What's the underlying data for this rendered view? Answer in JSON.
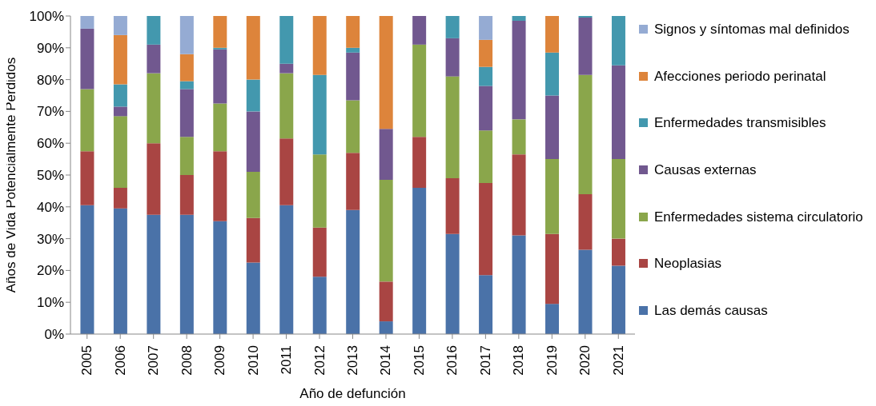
{
  "chart_data": {
    "type": "bar",
    "stacked": true,
    "xlabel": "Año de defunción",
    "ylabel": "Años de Vida Potencialmente Perdidos",
    "categories": [
      "2005",
      "2006",
      "2007",
      "2008",
      "2009",
      "2010",
      "2011",
      "2012",
      "2013",
      "2014",
      "2015",
      "2016",
      "2017",
      "2018",
      "2019",
      "2020",
      "2021"
    ],
    "series": [
      {
        "name": "Las demás causas",
        "color": "#4a72a8",
        "values": [
          40.5,
          39.5,
          37.5,
          37.5,
          35.5,
          22.5,
          40.5,
          18,
          39,
          4,
          46,
          31.5,
          18.5,
          31,
          9.5,
          26.5,
          21.5
        ]
      },
      {
        "name": "Neoplasias",
        "color": "#a94543",
        "values": [
          17,
          6.5,
          22.5,
          12.5,
          22,
          14,
          21,
          15.5,
          18,
          12.5,
          16,
          17.5,
          29,
          25.5,
          22,
          17.5,
          8.5
        ]
      },
      {
        "name": "Enfermedades sistema circulatorio",
        "color": "#8aa64b",
        "values": [
          19.5,
          22.5,
          22,
          12,
          15,
          14.5,
          20.5,
          23,
          16.5,
          32,
          29,
          32,
          16.5,
          11,
          23.5,
          37.5,
          25
        ]
      },
      {
        "name": "Causas externas",
        "color": "#71588f",
        "values": [
          19,
          3,
          9,
          15,
          17,
          19,
          3,
          0,
          15,
          16,
          9,
          12,
          14,
          31,
          20,
          18,
          29.5
        ]
      },
      {
        "name": "Enfermedades transmisibles",
        "color": "#4398ae",
        "values": [
          0,
          7,
          9,
          2.5,
          0.5,
          10,
          15,
          25,
          1.5,
          0,
          0,
          7,
          6,
          1.5,
          13.5,
          0.5,
          15.5
        ]
      },
      {
        "name": "Afecciones periodo perinatal",
        "color": "#dd843b",
        "values": [
          0,
          15.5,
          0,
          8.5,
          10,
          20,
          0,
          18.5,
          10,
          35.5,
          0,
          0,
          8.5,
          0,
          11.5,
          0,
          0
        ]
      },
      {
        "name": "Signos y síntomas mal definidos",
        "color": "#95abd3",
        "values": [
          4,
          6,
          0,
          12,
          0,
          0,
          0,
          0,
          0,
          0,
          0,
          0,
          7.5,
          0,
          0,
          0,
          0
        ]
      }
    ],
    "ylim": [
      0,
      100
    ],
    "yticks": [
      {
        "value": 0,
        "label": "0%"
      },
      {
        "value": 10,
        "label": "10%"
      },
      {
        "value": 20,
        "label": "20%"
      },
      {
        "value": 30,
        "label": "30%"
      },
      {
        "value": 40,
        "label": "40%"
      },
      {
        "value": 50,
        "label": "50%"
      },
      {
        "value": 60,
        "label": "60%"
      },
      {
        "value": 70,
        "label": "70%"
      },
      {
        "value": 80,
        "label": "80%"
      },
      {
        "value": 90,
        "label": "90%"
      },
      {
        "value": 100,
        "label": "100%"
      }
    ],
    "grid": false,
    "legend": "right"
  }
}
